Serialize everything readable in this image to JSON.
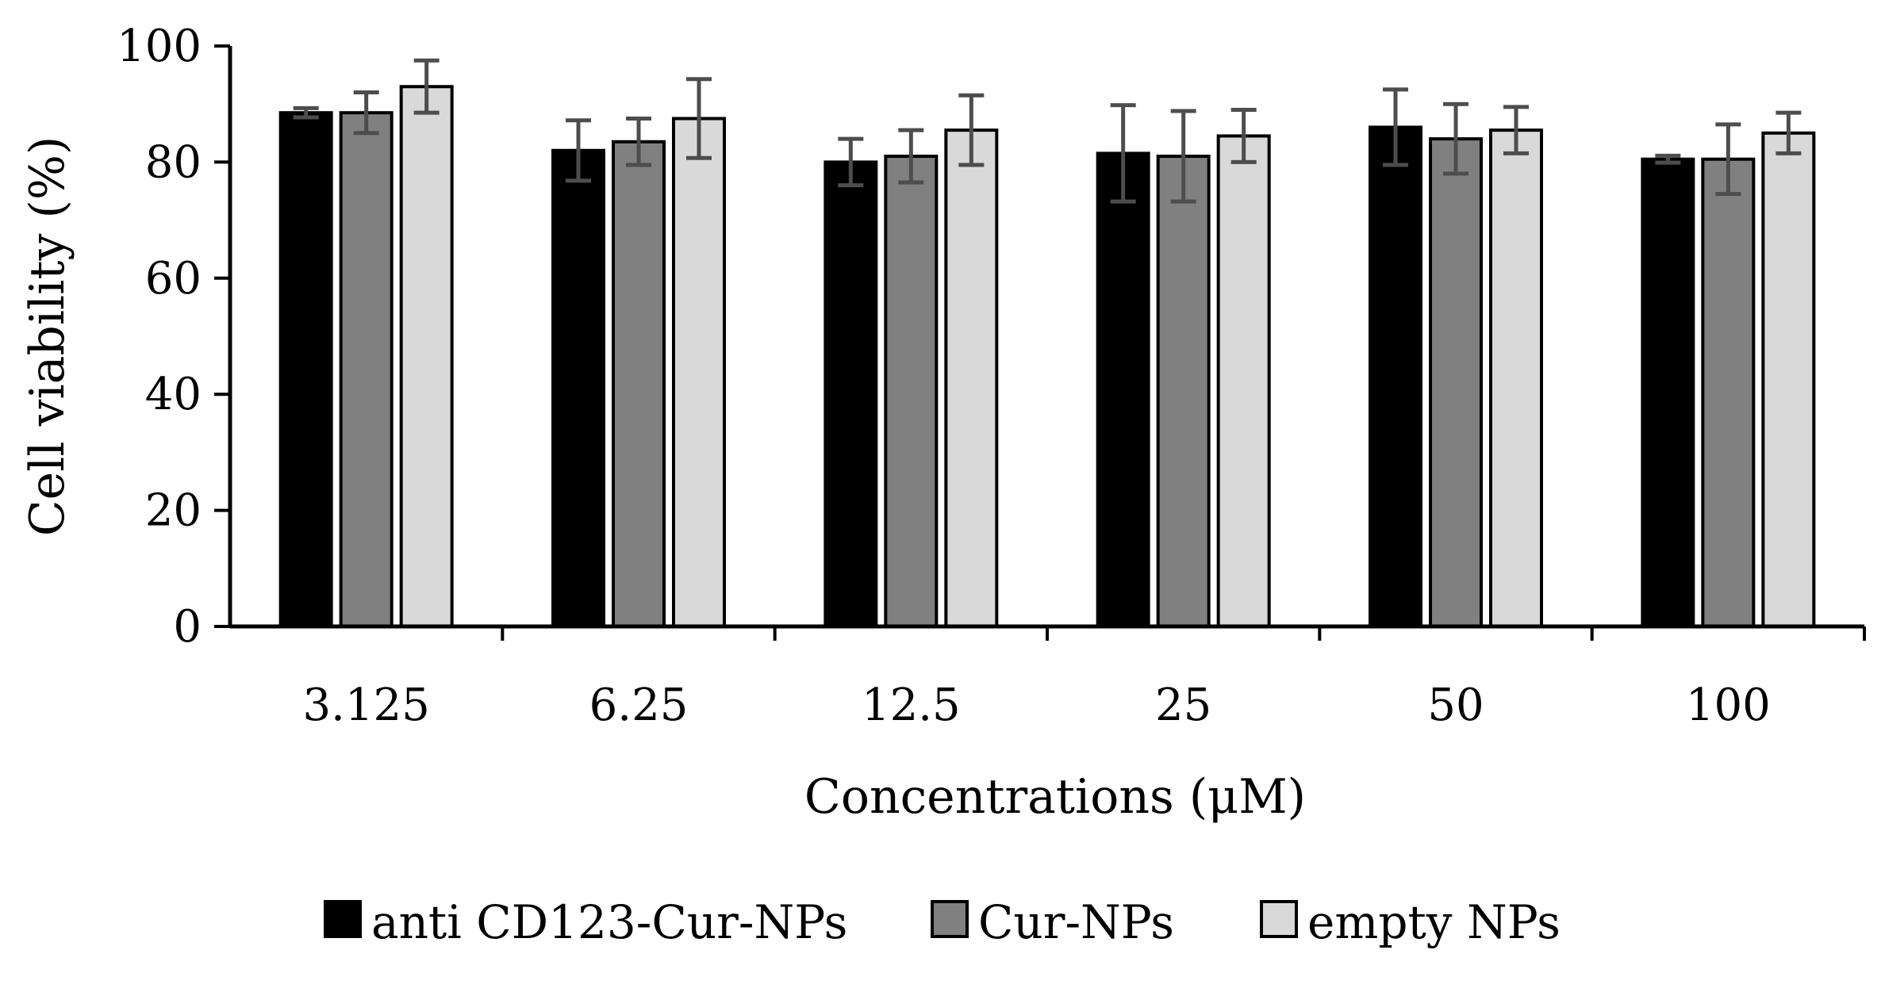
{
  "chart_data": {
    "type": "bar",
    "title": "",
    "xlabel": "Concentrations (μM)",
    "ylabel": "Cell viability (%)",
    "ylim": [
      0,
      100
    ],
    "yticks": [
      0,
      20,
      40,
      60,
      80,
      100
    ],
    "ytick_labels": [
      "0",
      "20",
      "40",
      "60",
      "80",
      "100"
    ],
    "categories": [
      "3.125",
      "6.25",
      "12.5",
      "25",
      "50",
      "100"
    ],
    "grid": false,
    "legend_position": "bottom",
    "series": [
      {
        "name": "anti CD123-Cur-NPs",
        "color": "#000000",
        "values": [
          88.5,
          82.0,
          80.0,
          81.5,
          86.0,
          80.5
        ],
        "errors": [
          0.8,
          5.2,
          4.0,
          8.3,
          6.5,
          0.6
        ]
      },
      {
        "name": "Cur-NPs",
        "color": "#808080",
        "values": [
          88.5,
          83.5,
          81.0,
          81.0,
          84.0,
          80.5
        ],
        "errors": [
          3.5,
          4.0,
          4.5,
          7.8,
          6.0,
          6.0
        ]
      },
      {
        "name": "empty NPs",
        "color": "#d9d9d9",
        "values": [
          93.0,
          87.5,
          85.5,
          84.5,
          85.5,
          85.0
        ],
        "errors": [
          4.5,
          6.8,
          6.0,
          4.5,
          4.0,
          3.5
        ]
      }
    ]
  }
}
